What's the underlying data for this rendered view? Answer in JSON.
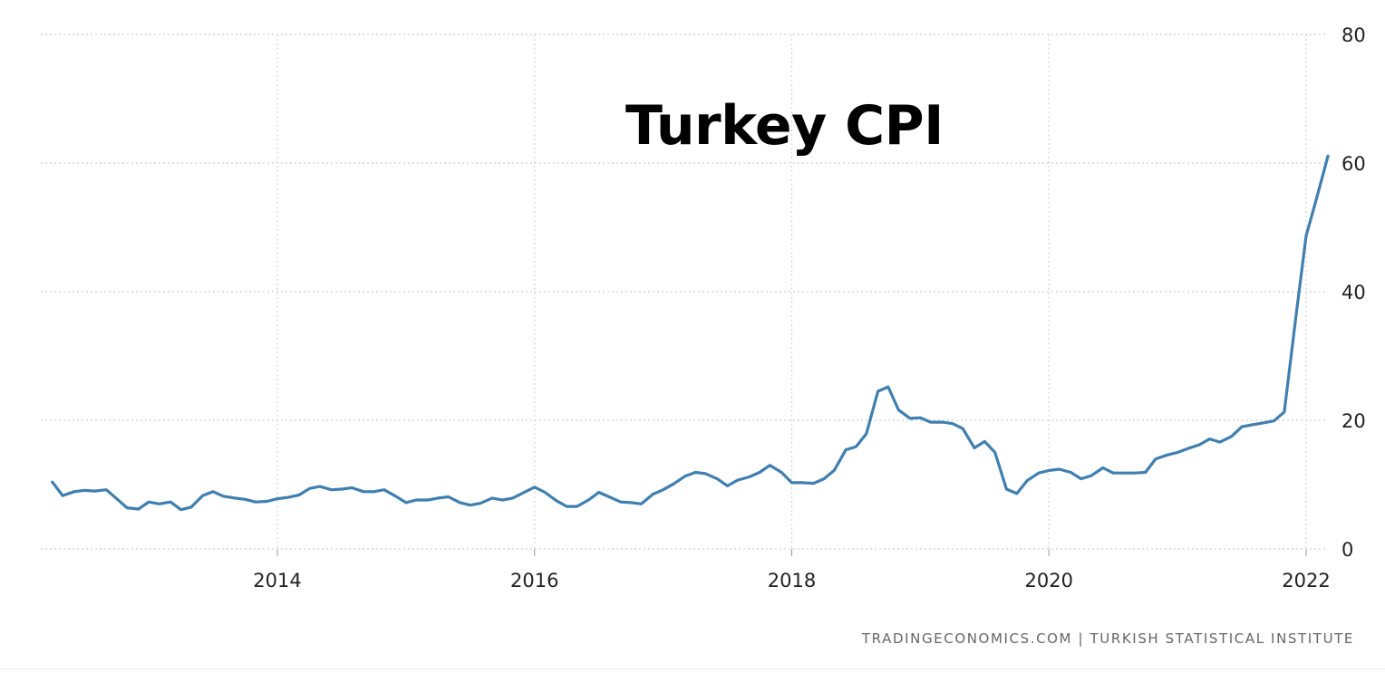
{
  "chart_data": {
    "type": "line",
    "title": "Turkey CPI",
    "xlabel": "",
    "ylabel": "",
    "xlim": [
      2012.25,
      2022.25
    ],
    "ylim": [
      0,
      80
    ],
    "x_ticks": [
      2014,
      2016,
      2018,
      2020,
      2022
    ],
    "y_ticks": [
      0,
      20,
      40,
      60,
      80
    ],
    "grid": true,
    "series": [
      {
        "color": "#3f7fb0",
        "points": [
          [
            2012.25,
            10.4
          ],
          [
            2012.33,
            8.3
          ],
          [
            2012.42,
            8.9
          ],
          [
            2012.5,
            9.1
          ],
          [
            2012.58,
            9.0
          ],
          [
            2012.67,
            9.2
          ],
          [
            2012.75,
            7.8
          ],
          [
            2012.83,
            6.4
          ],
          [
            2012.92,
            6.2
          ],
          [
            2013.0,
            7.3
          ],
          [
            2013.08,
            7.0
          ],
          [
            2013.17,
            7.3
          ],
          [
            2013.25,
            6.1
          ],
          [
            2013.33,
            6.5
          ],
          [
            2013.42,
            8.3
          ],
          [
            2013.5,
            8.9
          ],
          [
            2013.58,
            8.2
          ],
          [
            2013.67,
            7.9
          ],
          [
            2013.75,
            7.7
          ],
          [
            2013.83,
            7.3
          ],
          [
            2013.92,
            7.4
          ],
          [
            2014.0,
            7.8
          ],
          [
            2014.08,
            8.0
          ],
          [
            2014.17,
            8.4
          ],
          [
            2014.25,
            9.4
          ],
          [
            2014.33,
            9.7
          ],
          [
            2014.42,
            9.2
          ],
          [
            2014.5,
            9.3
          ],
          [
            2014.58,
            9.5
          ],
          [
            2014.67,
            8.9
          ],
          [
            2014.75,
            8.9
          ],
          [
            2014.83,
            9.2
          ],
          [
            2014.92,
            8.2
          ],
          [
            2015.0,
            7.2
          ],
          [
            2015.08,
            7.6
          ],
          [
            2015.17,
            7.6
          ],
          [
            2015.25,
            7.9
          ],
          [
            2015.33,
            8.1
          ],
          [
            2015.42,
            7.2
          ],
          [
            2015.5,
            6.8
          ],
          [
            2015.58,
            7.1
          ],
          [
            2015.67,
            7.9
          ],
          [
            2015.75,
            7.6
          ],
          [
            2015.83,
            7.9
          ],
          [
            2015.92,
            8.8
          ],
          [
            2016.0,
            9.6
          ],
          [
            2016.08,
            8.8
          ],
          [
            2016.17,
            7.5
          ],
          [
            2016.25,
            6.6
          ],
          [
            2016.33,
            6.6
          ],
          [
            2016.42,
            7.6
          ],
          [
            2016.5,
            8.8
          ],
          [
            2016.58,
            8.1
          ],
          [
            2016.67,
            7.3
          ],
          [
            2016.75,
            7.2
          ],
          [
            2016.83,
            7.0
          ],
          [
            2016.92,
            8.5
          ],
          [
            2017.0,
            9.2
          ],
          [
            2017.08,
            10.1
          ],
          [
            2017.17,
            11.3
          ],
          [
            2017.25,
            11.9
          ],
          [
            2017.33,
            11.7
          ],
          [
            2017.42,
            10.9
          ],
          [
            2017.5,
            9.8
          ],
          [
            2017.58,
            10.7
          ],
          [
            2017.67,
            11.2
          ],
          [
            2017.75,
            11.9
          ],
          [
            2017.83,
            13.0
          ],
          [
            2017.92,
            11.9
          ],
          [
            2018.0,
            10.3
          ],
          [
            2018.08,
            10.3
          ],
          [
            2018.17,
            10.2
          ],
          [
            2018.25,
            10.9
          ],
          [
            2018.33,
            12.2
          ],
          [
            2018.42,
            15.4
          ],
          [
            2018.5,
            15.9
          ],
          [
            2018.58,
            17.9
          ],
          [
            2018.67,
            24.5
          ],
          [
            2018.75,
            25.2
          ],
          [
            2018.83,
            21.6
          ],
          [
            2018.92,
            20.3
          ],
          [
            2019.0,
            20.4
          ],
          [
            2019.08,
            19.7
          ],
          [
            2019.17,
            19.7
          ],
          [
            2019.25,
            19.5
          ],
          [
            2019.33,
            18.7
          ],
          [
            2019.42,
            15.7
          ],
          [
            2019.5,
            16.7
          ],
          [
            2019.58,
            15.0
          ],
          [
            2019.67,
            9.3
          ],
          [
            2019.75,
            8.6
          ],
          [
            2019.83,
            10.6
          ],
          [
            2019.92,
            11.8
          ],
          [
            2020.0,
            12.2
          ],
          [
            2020.08,
            12.4
          ],
          [
            2020.17,
            11.9
          ],
          [
            2020.25,
            10.9
          ],
          [
            2020.33,
            11.4
          ],
          [
            2020.42,
            12.6
          ],
          [
            2020.5,
            11.8
          ],
          [
            2020.58,
            11.8
          ],
          [
            2020.67,
            11.8
          ],
          [
            2020.75,
            11.9
          ],
          [
            2020.83,
            14.0
          ],
          [
            2020.92,
            14.6
          ],
          [
            2021.0,
            15.0
          ],
          [
            2021.08,
            15.6
          ],
          [
            2021.17,
            16.2
          ],
          [
            2021.25,
            17.1
          ],
          [
            2021.33,
            16.6
          ],
          [
            2021.42,
            17.5
          ],
          [
            2021.5,
            19.0
          ],
          [
            2021.58,
            19.3
          ],
          [
            2021.67,
            19.6
          ],
          [
            2021.75,
            19.9
          ],
          [
            2021.83,
            21.3
          ],
          [
            2021.92,
            36.1
          ],
          [
            2022.0,
            48.7
          ],
          [
            2022.08,
            54.4
          ],
          [
            2022.17,
            61.1
          ]
        ]
      }
    ],
    "source": "TRADINGECONOMICS.COM  |  TURKISH STATISTICAL INSTITUTE"
  }
}
